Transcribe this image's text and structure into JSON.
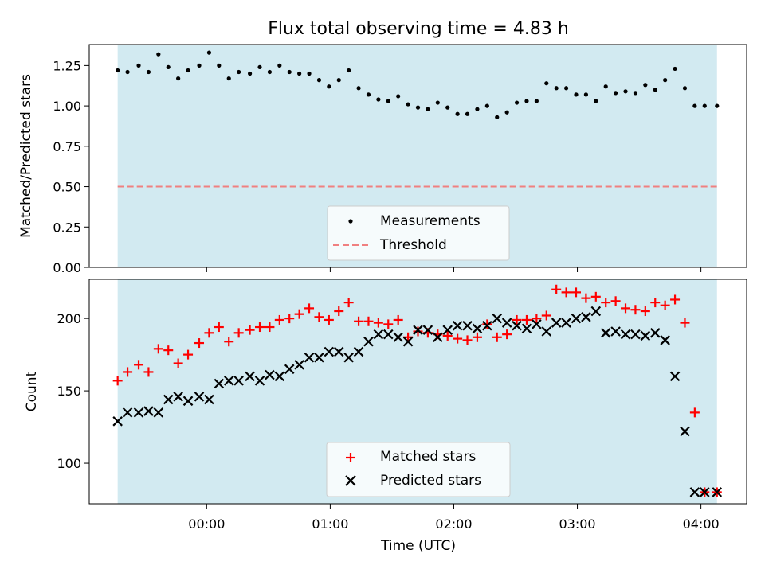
{
  "title": "Flux total observing time = 4.83 h",
  "colors": {
    "shade": "#add8e6",
    "measurement": "#000000",
    "threshold": "#f08080",
    "matched": "#ff0000",
    "predicted": "#000000"
  },
  "x_axis": {
    "label": "Time (UTC)",
    "unit": "hours since 00:00 UTC",
    "xlim": [
      -0.95,
      4.37
    ],
    "ticks": [
      0,
      1,
      2,
      3,
      4
    ],
    "tick_labels": [
      "00:00",
      "01:00",
      "02:00",
      "03:00",
      "04:00"
    ],
    "shaded_range": [
      -0.72,
      4.13
    ]
  },
  "chart_data": [
    {
      "type": "scatter",
      "name": "ratio-panel",
      "ylabel": "Matched/Predicted stars",
      "ylim": [
        0,
        1.38
      ],
      "yticks": [
        0,
        0.25,
        0.5,
        0.75,
        1.0,
        1.25
      ],
      "ytick_labels": [
        "0.00",
        "0.25",
        "0.50",
        "0.75",
        "1.00",
        "1.25"
      ],
      "grid": false,
      "legend": {
        "placement": "bottom-center",
        "entries": [
          "Measurements",
          "Threshold"
        ]
      },
      "threshold": {
        "label": "Threshold",
        "value": 0.5
      },
      "series": [
        {
          "name": "Measurements",
          "x": [
            -0.72,
            -0.64,
            -0.55,
            -0.47,
            -0.39,
            -0.31,
            -0.23,
            -0.15,
            -0.06,
            0.02,
            0.1,
            0.18,
            0.26,
            0.35,
            0.43,
            0.51,
            0.59,
            0.67,
            0.75,
            0.83,
            0.91,
            0.99,
            1.07,
            1.15,
            1.23,
            1.31,
            1.39,
            1.47,
            1.55,
            1.63,
            1.71,
            1.79,
            1.87,
            1.95,
            2.03,
            2.11,
            2.19,
            2.27,
            2.35,
            2.43,
            2.51,
            2.59,
            2.67,
            2.75,
            2.83,
            2.91,
            2.99,
            3.07,
            3.15,
            3.23,
            3.31,
            3.39,
            3.47,
            3.55,
            3.63,
            3.71,
            3.79,
            3.87,
            3.95,
            4.03,
            4.13
          ],
          "values": [
            1.22,
            1.21,
            1.25,
            1.21,
            1.32,
            1.24,
            1.17,
            1.22,
            1.25,
            1.33,
            1.25,
            1.17,
            1.21,
            1.2,
            1.24,
            1.21,
            1.25,
            1.21,
            1.2,
            1.2,
            1.16,
            1.12,
            1.16,
            1.22,
            1.11,
            1.07,
            1.04,
            1.03,
            1.06,
            1.01,
            0.99,
            0.98,
            1.02,
            0.99,
            0.95,
            0.95,
            0.98,
            1.0,
            0.93,
            0.96,
            1.02,
            1.03,
            1.03,
            1.14,
            1.11,
            1.11,
            1.07,
            1.07,
            1.03,
            1.12,
            1.08,
            1.09,
            1.08,
            1.13,
            1.1,
            1.16,
            1.23,
            1.11,
            1.0,
            1.0,
            1.0
          ]
        }
      ]
    },
    {
      "type": "scatter",
      "name": "count-panel",
      "ylabel": "Count",
      "ylim": [
        72,
        227
      ],
      "yticks": [
        100,
        150,
        200
      ],
      "ytick_labels": [
        "100",
        "150",
        "200"
      ],
      "grid": false,
      "legend": {
        "placement": "bottom-center",
        "entries": [
          "Matched stars",
          "Predicted stars"
        ]
      },
      "series": [
        {
          "name": "Matched stars",
          "marker": "plus",
          "x": [
            -0.72,
            -0.64,
            -0.55,
            -0.47,
            -0.39,
            -0.31,
            -0.23,
            -0.15,
            -0.06,
            0.02,
            0.1,
            0.18,
            0.26,
            0.35,
            0.43,
            0.51,
            0.59,
            0.67,
            0.75,
            0.83,
            0.91,
            0.99,
            1.07,
            1.15,
            1.23,
            1.31,
            1.39,
            1.47,
            1.55,
            1.63,
            1.71,
            1.79,
            1.87,
            1.95,
            2.03,
            2.11,
            2.19,
            2.27,
            2.35,
            2.43,
            2.51,
            2.59,
            2.67,
            2.75,
            2.83,
            2.91,
            2.99,
            3.07,
            3.15,
            3.23,
            3.31,
            3.39,
            3.47,
            3.55,
            3.63,
            3.71,
            3.79,
            3.87,
            3.95,
            4.03,
            4.13
          ],
          "values": [
            157,
            163,
            168,
            163,
            179,
            178,
            169,
            175,
            183,
            190,
            194,
            184,
            190,
            192,
            194,
            194,
            199,
            200,
            203,
            207,
            201,
            199,
            205,
            211,
            198,
            198,
            197,
            196,
            199,
            187,
            191,
            190,
            189,
            188,
            186,
            185,
            187,
            196,
            187,
            189,
            199,
            199,
            200,
            202,
            220,
            218,
            218,
            214,
            215,
            211,
            212,
            207,
            206,
            205,
            211,
            209,
            213,
            197,
            135,
            80,
            80
          ]
        },
        {
          "name": "Predicted stars",
          "marker": "x",
          "x": [
            -0.72,
            -0.64,
            -0.55,
            -0.47,
            -0.39,
            -0.31,
            -0.23,
            -0.15,
            -0.06,
            0.02,
            0.1,
            0.18,
            0.26,
            0.35,
            0.43,
            0.51,
            0.59,
            0.67,
            0.75,
            0.83,
            0.91,
            0.99,
            1.07,
            1.15,
            1.23,
            1.31,
            1.39,
            1.47,
            1.55,
            1.63,
            1.71,
            1.79,
            1.87,
            1.95,
            2.03,
            2.11,
            2.19,
            2.27,
            2.35,
            2.43,
            2.51,
            2.59,
            2.67,
            2.75,
            2.83,
            2.91,
            2.99,
            3.07,
            3.15,
            3.23,
            3.31,
            3.39,
            3.47,
            3.55,
            3.63,
            3.71,
            3.79,
            3.87,
            3.95,
            4.03,
            4.13
          ],
          "values": [
            129,
            135,
            135,
            136,
            135,
            144,
            146,
            143,
            146,
            144,
            155,
            157,
            157,
            160,
            157,
            161,
            160,
            165,
            168,
            173,
            173,
            177,
            177,
            173,
            177,
            184,
            189,
            189,
            187,
            184,
            192,
            192,
            187,
            192,
            195,
            195,
            193,
            195,
            200,
            197,
            195,
            193,
            196,
            191,
            197,
            197,
            200,
            201,
            205,
            190,
            191,
            189,
            189,
            188,
            190,
            185,
            160,
            122,
            80,
            80,
            80
          ]
        }
      ]
    }
  ]
}
